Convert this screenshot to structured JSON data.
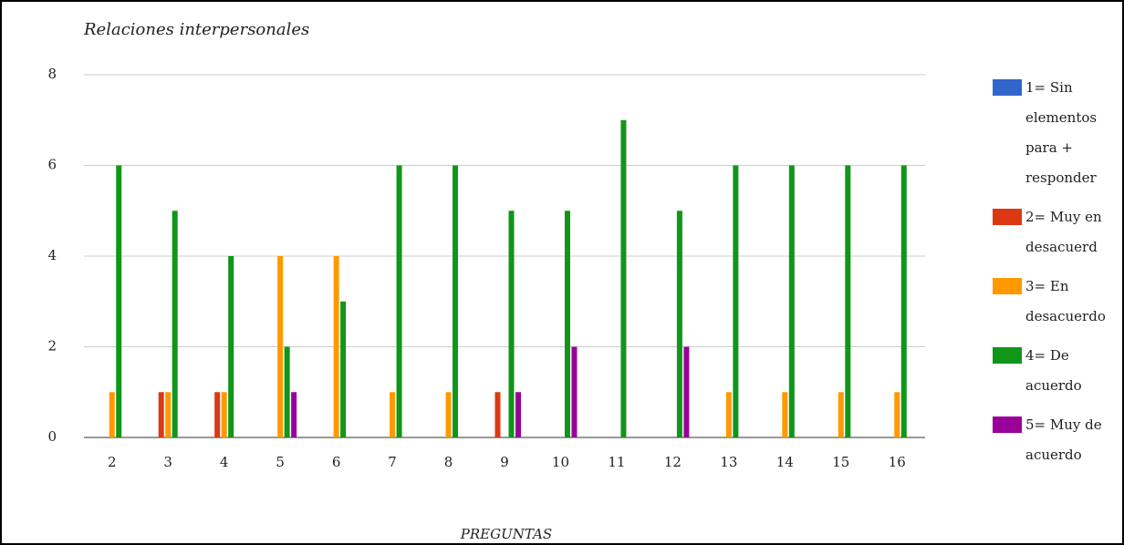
{
  "chart_data": {
    "type": "bar",
    "title": "Relaciones interpersonales",
    "x_label": "PREGUNTAS",
    "categories": [
      "2",
      "3",
      "4",
      "5",
      "6",
      "7",
      "8",
      "9",
      "10",
      "11",
      "12",
      "13",
      "14",
      "15",
      "16"
    ],
    "series": [
      {
        "name": "1= Sin elementos para + responder",
        "color": "#3366cc",
        "values": [
          0,
          0,
          0,
          0,
          0,
          0,
          0,
          0,
          0,
          0,
          0,
          0,
          0,
          0,
          0
        ]
      },
      {
        "name": "2= Muy en desacuerd",
        "color": "#dc3912",
        "values": [
          0,
          1,
          1,
          0,
          0,
          0,
          0,
          1,
          0,
          0,
          0,
          0,
          0,
          0,
          0
        ]
      },
      {
        "name": "3= En desacuerdo",
        "color": "#ff9900",
        "values": [
          1,
          1,
          1,
          4,
          4,
          1,
          1,
          0,
          0,
          0,
          0,
          1,
          1,
          1,
          1
        ]
      },
      {
        "name": "4= De acuerdo",
        "color": "#109618",
        "values": [
          6,
          5,
          4,
          2,
          3,
          6,
          6,
          5,
          5,
          7,
          5,
          6,
          6,
          6,
          6
        ]
      },
      {
        "name": "5= Muy de acuerdo",
        "color": "#990099",
        "values": [
          0,
          0,
          0,
          1,
          0,
          0,
          0,
          1,
          2,
          0,
          2,
          0,
          0,
          0,
          0
        ]
      }
    ],
    "ylim": [
      0,
      8
    ],
    "yticks": [
      0,
      2,
      4,
      6,
      8
    ],
    "grid": true,
    "legend": "right"
  }
}
